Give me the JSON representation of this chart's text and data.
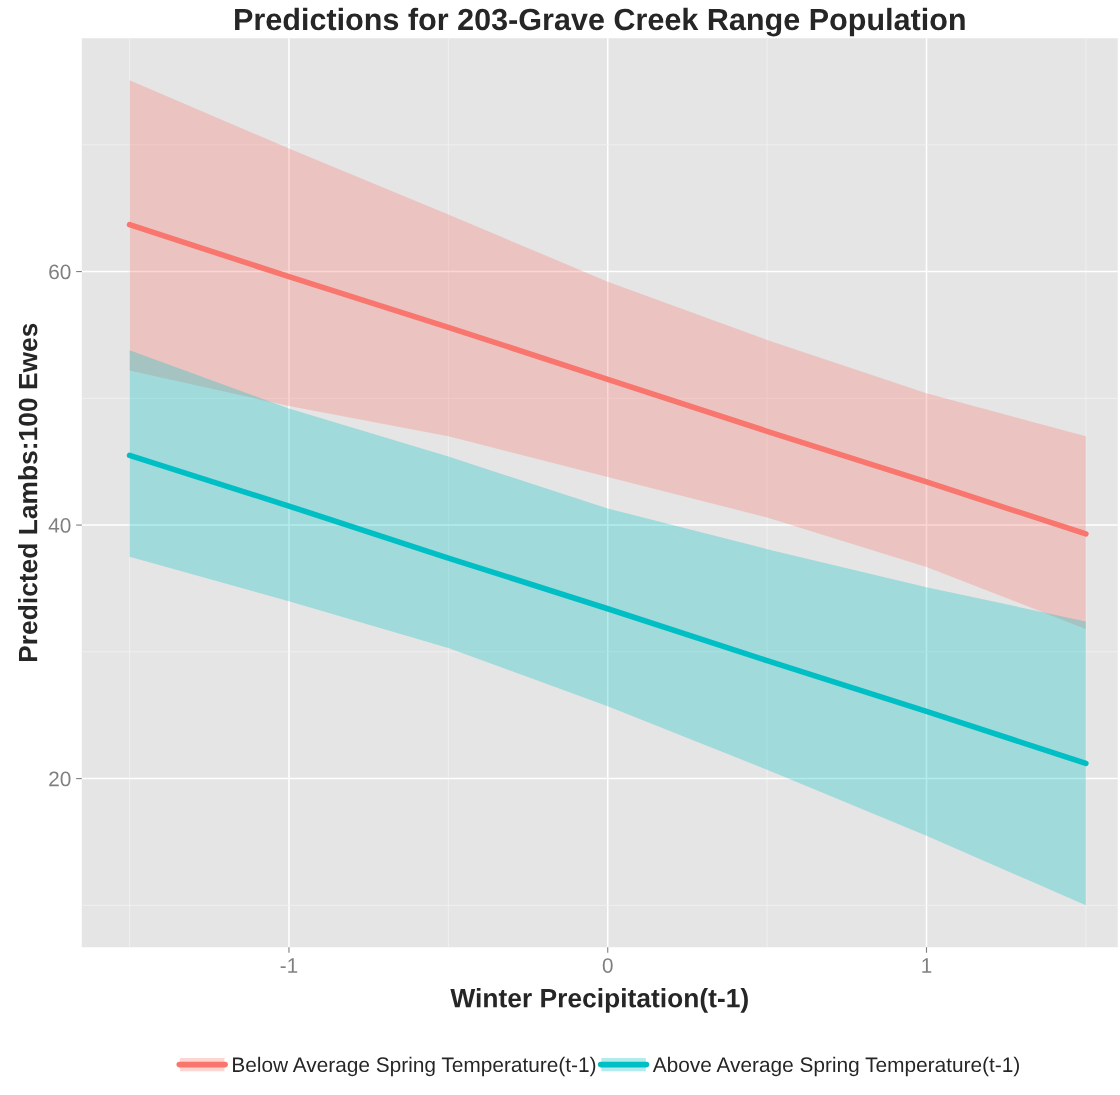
{
  "chart_data": {
    "type": "line",
    "title": "Predictions for 203-Grave Creek Range Population",
    "xlabel": "Winter Precipitation(t-1)",
    "ylabel": "Predicted Lambs:100 Ewes",
    "x": [
      -1.5,
      -1,
      -0.5,
      0,
      0.5,
      1,
      1.5
    ],
    "series": [
      {
        "name": "Below Average Spring Temperature(t-1)",
        "color": "#f8766d",
        "values": [
          63.7,
          59.6,
          55.6,
          51.5,
          47.4,
          43.4,
          39.3
        ],
        "lower": [
          52.2,
          49.4,
          47.0,
          43.8,
          40.6,
          36.7,
          31.8
        ],
        "upper": [
          75.1,
          69.7,
          64.5,
          59.2,
          54.6,
          50.4,
          47.0
        ]
      },
      {
        "name": "Above Average Spring Temperature(t-1)",
        "color": "#00bfc4",
        "values": [
          45.5,
          41.5,
          37.4,
          33.4,
          29.3,
          25.3,
          21.2
        ],
        "lower": [
          37.5,
          34.0,
          30.3,
          25.7,
          20.7,
          15.5,
          10.0
        ],
        "upper": [
          53.8,
          49.2,
          45.4,
          41.3,
          38.1,
          35.1,
          32.4
        ]
      }
    ],
    "xlim": [
      -1.65,
      1.6
    ],
    "ylim": [
      6.7,
      78.4
    ],
    "xticks": [
      -1,
      0,
      1
    ],
    "yticks": [
      20,
      40,
      60
    ],
    "grid": true,
    "legend": "bottom",
    "marker": "none",
    "line_style": "solid"
  }
}
